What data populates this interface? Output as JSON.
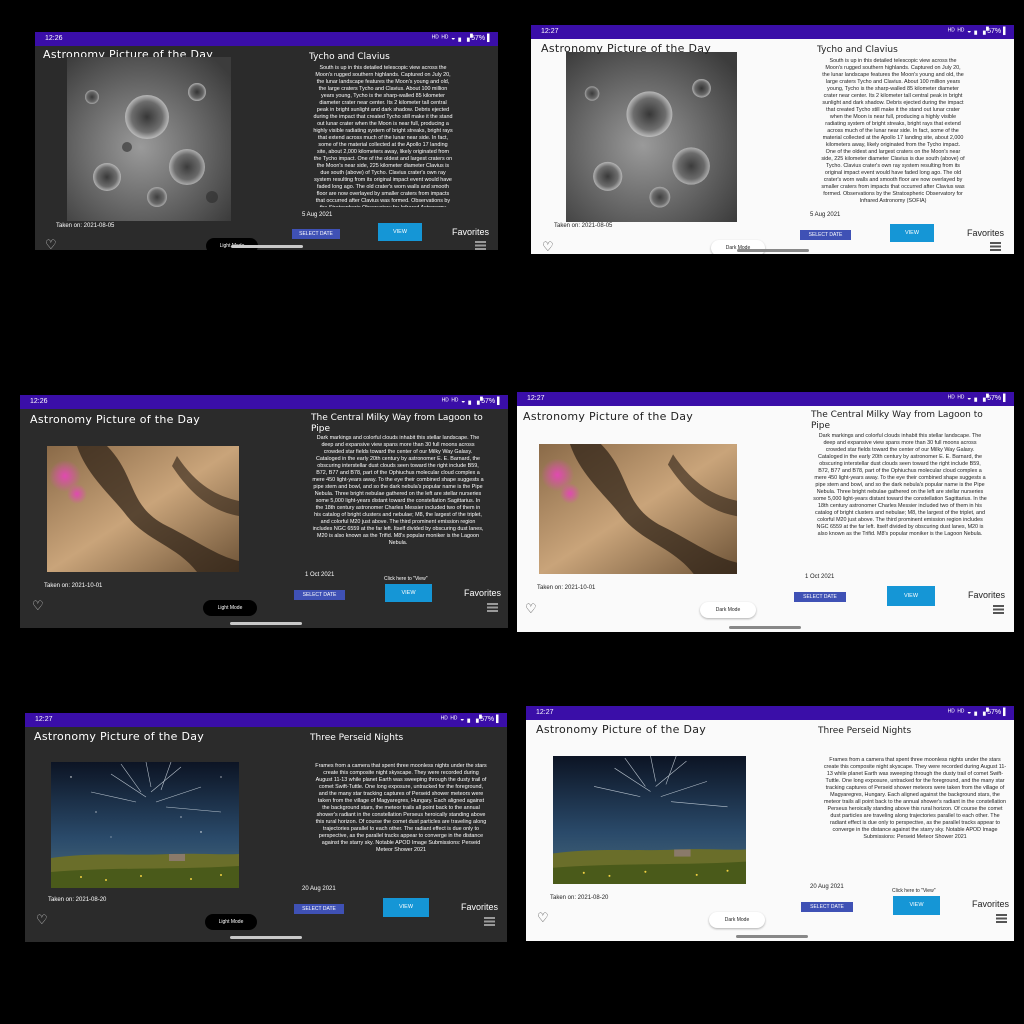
{
  "status": {
    "icons": "ᴴᴰ ᴴᴰ ◒ ▖▗▘",
    "battery_icon": "▌"
  },
  "app": {
    "title": "Astronomy Picture of the Day"
  },
  "labels": {
    "light_mode": "Light Mode",
    "dark_mode": "Dark Mode",
    "select_date": "SELECT DATE",
    "view": "VIEW",
    "favorites": "Favorites",
    "click_hint": "Click here to \"View\"",
    "heart_icon": "♡"
  },
  "screens": [
    {
      "time": "12:26",
      "battery": "57%",
      "theme": "dark",
      "title": "Tycho and Clavius",
      "taken": "Taken on: 2021-08-05",
      "date": "5 Aug 2021",
      "description": "South is up in this detailed telescopic view across the Moon's rugged southern highlands. Captured on July 20, the lunar landscape features the Moon's young and old, the large craters Tycho and Clavius. About 100 million years young, Tycho is the sharp-walled 85 kilometer diameter crater near center. Its 2 kilometer tall central peak in bright sunlight and dark shadow. Debris ejected during the impact that created Tycho still make it the stand out lunar crater when the Moon is near full, producing a highly visible radiating system of bright streaks, bright rays that extend across much of the lunar near side. In fact, some of the material collected at the Apollo 17 landing site, about 2,000 kilometers away, likely originated from the Tycho impact. One of the oldest and largest craters on the Moon's near side, 225 kilometer diameter Clavius is due south (above) of Tycho. Clavius crater's own ray system resulting from its original impact event would have faded long ago. The old crater's worn walls and smooth floor are now overlayed by smaller craters from impacts that occurred after Clavius was formed. Observations by the Stratospheric Observatory for Infrared Astronomy (SOFIA)"
    },
    {
      "time": "12:27",
      "battery": "57%",
      "theme": "light",
      "title": "Tycho and Clavius",
      "taken": "Taken on: 2021-08-05",
      "date": "5 Aug 2021",
      "description": "South is up in this detailed telescopic view across the Moon's rugged southern highlands. Captured on July 20, the lunar landscape features the Moon's young and old, the large craters Tycho and Clavius. About 100 million years young, Tycho is the sharp-walled 85 kilometer diameter crater near center. Its 2 kilometer tall central peak in bright sunlight and dark shadow. Debris ejected during the impact that created Tycho still make it the stand out lunar crater when the Moon is near full, producing a highly visible radiating system of bright streaks, bright rays that extend across much of the lunar near side. In fact, some of the material collected at the Apollo 17 landing site, about 2,000 kilometers away, likely originated from the Tycho impact. One of the oldest and largest craters on the Moon's near side, 225 kilometer diameter Clavius is due south (above) of Tycho. Clavius crater's own ray system resulting from its original impact event would have faded long ago. The old crater's worn walls and smooth floor are now overlayed by smaller craters from impacts that occurred after Clavius was formed. Observations by the Stratospheric Observatory for Infrared Astronomy (SOFIA)"
    },
    {
      "time": "12:26",
      "battery": "57%",
      "theme": "dark",
      "title": "The Central Milky Way from Lagoon to Pipe",
      "taken": "Taken on: 2021-10-01",
      "date": "1 Oct 2021",
      "description": "Dark markings and colorful clouds inhabit this stellar landscape. The deep and expansive view spans more than 30 full moons across crowded star fields toward the center of our Milky Way Galaxy. Cataloged in the early 20th century by astronomer E. E. Barnard, the obscuring interstellar dust clouds seen toward the right include B59, B72, B77 and B78, part of the Ophiuchus molecular cloud complex a mere 450 light-years away. To the eye their combined shape suggests a pipe stem and bowl, and so the dark nebula's popular name is the Pipe Nebula. Three bright nebulae gathered on the left are stellar nurseries some 5,000 light-years distant toward the constellation Sagittarius. In the 18th century astronomer Charles Messier included two of them in his catalog of bright clusters and nebulae; M8, the largest of the triplet, and colorful M20 just above. The third prominent emission region includes NGC 6559 at the far left. Itself divided by obscuring dust lanes, M20 is also known as the Trifid. M8's popular moniker is the Lagoon Nebula."
    },
    {
      "time": "12:27",
      "battery": "57%",
      "theme": "light",
      "title": "The Central Milky Way from Lagoon to Pipe",
      "taken": "Taken on: 2021-10-01",
      "date": "1 Oct 2021",
      "description": "Dark markings and colorful clouds inhabit this stellar landscape. The deep and expansive view spans more than 30 full moons across crowded star fields toward the center of our Milky Way Galaxy. Cataloged in the early 20th century by astronomer E. E. Barnard, the obscuring interstellar dust clouds seen toward the right include B59, B72, B77 and B78, part of the Ophiuchus molecular cloud complex a mere 450 light-years away. To the eye their combined shape suggests a pipe stem and bowl, and so the dark nebula's popular name is the Pipe Nebula. Three bright nebulae gathered on the left are stellar nurseries some 5,000 light-years distant toward the constellation Sagittarius. In the 18th century astronomer Charles Messier included two of them in his catalog of bright clusters and nebulae; M8, the largest of the triplet, and colorful M20 just above. The third prominent emission region includes NGC 6559 at the far left. Itself divided by obscuring dust lanes, M20 is also known as the Trifid. M8's popular moniker is the Lagoon Nebula."
    },
    {
      "time": "12:27",
      "battery": "57%",
      "theme": "dark",
      "title": "Three Perseid Nights",
      "taken": "Taken on: 2021-08-20",
      "date": "20 Aug 2021",
      "description": "Frames from a camera that spent three moonless nights under the stars create this composite night skyscape. They were recorded during August 11-13 while planet Earth was sweeping through the dusty trail of comet Swift-Tuttle. One long exposure, untracked for the foreground, and the many star tracking captures of Perseid shower meteors were taken from the village of Magyaregres, Hungary. Each aligned against the background stars, the meteor trails all point back to the annual shower's radiant in the constellation Perseus heroically standing above this rural horizon. Of course the comet dust particles are traveling along trajectories parallel to each other. The radiant effect is due only to perspective, as the parallel tracks appear to converge in the distance against the starry sky.   Notable APOD Image Submissions: Perseid Meteor Shower 2021"
    },
    {
      "time": "12:27",
      "battery": "57%",
      "theme": "light",
      "title": "Three Perseid Nights",
      "taken": "Taken on: 2021-08-20",
      "date": "20 Aug 2021",
      "description": "Frames from a camera that spent three moonless nights under the stars create this composite night skyscape. They were recorded during August 11-13 while planet Earth was sweeping through the dusty trail of comet Swift-Tuttle. One long exposure, untracked for the foreground, and the many star tracking captures of Perseid shower meteors were taken from the village of Magyaregres, Hungary. Each aligned against the background stars, the meteor trails all point back to the annual shower's radiant in the constellation Perseus heroically standing above this rural horizon. Of course the comet dust particles are traveling along trajectories parallel to each other. The radiant effect is due only to perspective, as the parallel tracks appear to converge in the distance against the starry sky.   Notable APOD Image Submissions: Perseid Meteor Shower 2021"
    }
  ]
}
